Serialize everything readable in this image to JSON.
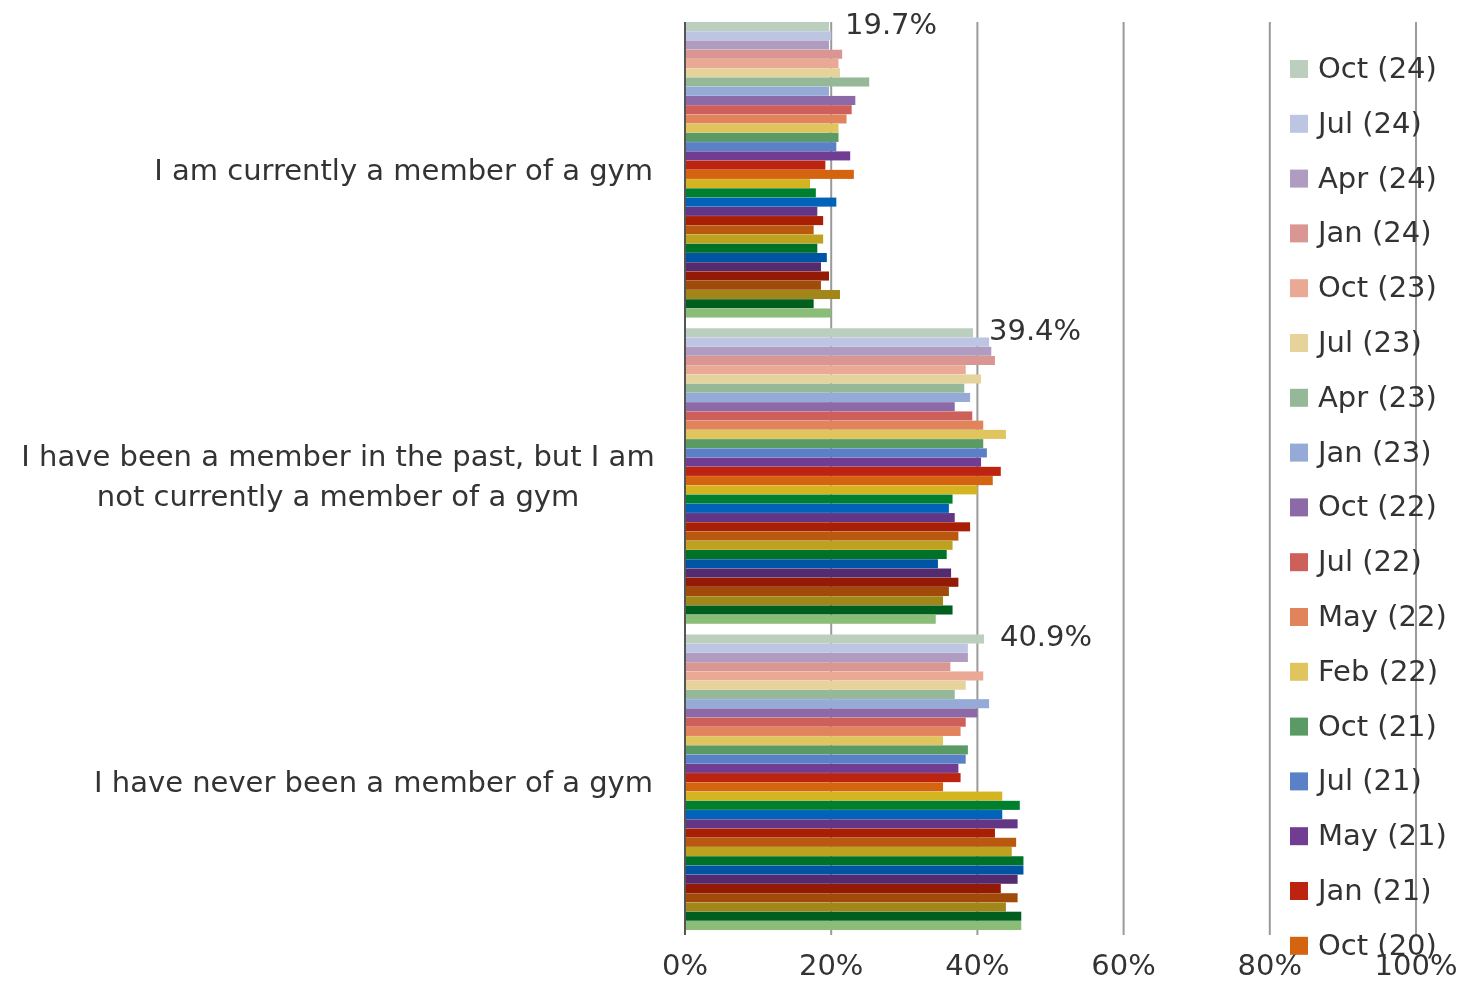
{
  "chart_data": {
    "type": "bar",
    "orientation": "horizontal",
    "categories": [
      "I am currently a member of a gym",
      "I have been a member in the past, but I am not currently a member of a gym",
      "I have never been a member of a gym"
    ],
    "xlim": [
      0,
      100
    ],
    "xticks": [
      {
        "value": 0,
        "label": "0%"
      },
      {
        "value": 20,
        "label": "20%"
      },
      {
        "value": 40,
        "label": "40%"
      },
      {
        "value": 60,
        "label": "60%"
      },
      {
        "value": 80,
        "label": "80%"
      },
      {
        "value": 100,
        "label": "100%"
      }
    ],
    "grid": "x",
    "legend": "right",
    "series": [
      {
        "name": "Oct (24)",
        "color": "#bccfbf",
        "values": [
          19.7,
          39.4,
          40.9
        ],
        "value_labels": [
          "19.7%",
          "39.4%",
          "40.9%"
        ]
      },
      {
        "name": "Jul (24)",
        "color": "#bcc6e3",
        "values": [
          20.0,
          41.6,
          38.7
        ]
      },
      {
        "name": "Apr (24)",
        "color": "#b09cc1",
        "values": [
          19.7,
          41.9,
          38.7
        ]
      },
      {
        "name": "Jan (24)",
        "color": "#d99693",
        "values": [
          21.5,
          42.4,
          36.3
        ]
      },
      {
        "name": "Oct (23)",
        "color": "#e9a995",
        "values": [
          21.0,
          38.4,
          40.8
        ]
      },
      {
        "name": "Jul (23)",
        "color": "#e5d39b",
        "values": [
          21.2,
          40.5,
          38.4
        ]
      },
      {
        "name": "Apr (23)",
        "color": "#94b898",
        "values": [
          25.2,
          38.2,
          36.9
        ]
      },
      {
        "name": "Jan (23)",
        "color": "#95aad6",
        "values": [
          19.7,
          39.0,
          41.6
        ]
      },
      {
        "name": "Oct (22)",
        "color": "#8c6aa8",
        "values": [
          23.3,
          36.9,
          40.0
        ]
      },
      {
        "name": "Jul (22)",
        "color": "#cd605a",
        "values": [
          22.8,
          39.3,
          38.4
        ]
      },
      {
        "name": "May (22)",
        "color": "#e2845b",
        "values": [
          22.1,
          40.8,
          37.7
        ]
      },
      {
        "name": "Feb (22)",
        "color": "#e0c45e",
        "values": [
          21.0,
          43.9,
          35.3
        ]
      },
      {
        "name": "Oct (21)",
        "color": "#5a9a65",
        "values": [
          21.0,
          40.8,
          38.7
        ]
      },
      {
        "name": "Jul (21)",
        "color": "#5a80c8",
        "values": [
          20.7,
          41.3,
          38.4
        ]
      },
      {
        "name": "May (21)",
        "color": "#703d92",
        "values": [
          22.6,
          40.5,
          37.4
        ]
      },
      {
        "name": "Jan (21)",
        "color": "#bd2410",
        "values": [
          19.2,
          43.2,
          37.7
        ]
      },
      {
        "name": "Oct (20)",
        "color": "#d4640f",
        "values": [
          23.1,
          42.1,
          35.3
        ]
      },
      {
        "color": "#d4b421",
        "values": [
          17.1,
          40.0,
          43.4
        ]
      },
      {
        "color": "#00802f",
        "values": [
          17.9,
          36.6,
          45.8
        ]
      },
      {
        "color": "#0062b8",
        "values": [
          20.7,
          36.1,
          43.4
        ]
      },
      {
        "color": "#633585",
        "values": [
          18.1,
          36.9,
          45.5
        ]
      },
      {
        "color": "#a81f05",
        "values": [
          18.9,
          39.0,
          42.4
        ]
      },
      {
        "color": "#b9580f",
        "values": [
          17.6,
          37.4,
          45.3
        ]
      },
      {
        "color": "#bea21f",
        "values": [
          18.9,
          36.6,
          44.7
        ]
      },
      {
        "color": "#007227",
        "values": [
          18.1,
          35.8,
          46.3
        ]
      },
      {
        "color": "#0054a4",
        "values": [
          19.4,
          34.6,
          46.3
        ]
      },
      {
        "color": "#532b6e",
        "values": [
          18.6,
          36.4,
          45.5
        ]
      },
      {
        "color": "#931a05",
        "values": [
          19.7,
          37.4,
          43.2
        ]
      },
      {
        "color": "#a14b0b",
        "values": [
          18.6,
          36.1,
          45.5
        ]
      },
      {
        "color": "#a3861a",
        "values": [
          21.2,
          35.3,
          43.9
        ]
      },
      {
        "color": "#005e1f",
        "values": [
          17.6,
          36.6,
          46.0
        ]
      },
      {
        "color": "#8abd78",
        "values": [
          20.0,
          34.3,
          46.0
        ]
      }
    ]
  }
}
